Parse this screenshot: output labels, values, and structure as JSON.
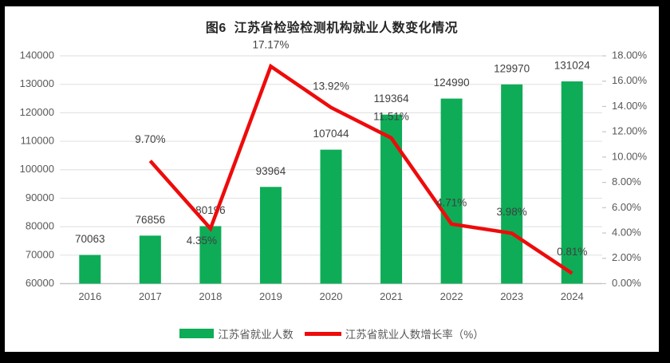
{
  "title": "图6  江苏省检验检测机构就业人数变化情况",
  "colors": {
    "bar": "#0eac57",
    "line": "#ee0b0b",
    "grid": "#e4e4e4",
    "axis_line": "#c6c6c6",
    "axis_text": "#595959",
    "data_label_text": "#404040",
    "background": "#ffffff",
    "frame": "#000000"
  },
  "chart_data": {
    "type": "bar+line combo",
    "title": "图6  江苏省检验检测机构就业人数变化情况",
    "categories": [
      "2016",
      "2017",
      "2018",
      "2019",
      "2020",
      "2021",
      "2022",
      "2023",
      "2024"
    ],
    "series": [
      {
        "name": "江苏省就业人数",
        "type": "bar",
        "axis": "left",
        "values": [
          70063,
          76856,
          80196,
          93964,
          107044,
          119364,
          124990,
          129970,
          131024
        ],
        "labels": [
          "70063",
          "76856",
          "80196",
          "93964",
          "107044",
          "119364",
          "124990",
          "129970",
          "131024"
        ]
      },
      {
        "name": "江苏省就业人数增长率（%）",
        "type": "line",
        "axis": "right",
        "values": [
          null,
          9.7,
          4.35,
          17.17,
          13.92,
          11.51,
          4.71,
          3.98,
          0.81
        ],
        "labels": [
          "",
          "9.70%",
          "4.35%",
          "17.17%",
          "13.92%",
          "11.51%",
          "4.71%",
          "3.98%",
          "0.81%"
        ]
      }
    ],
    "left_axis": {
      "min": 60000,
      "max": 140000,
      "step": 10000,
      "ticks": [
        "140000",
        "130000",
        "120000",
        "110000",
        "100000",
        "90000",
        "80000",
        "70000",
        "60000"
      ]
    },
    "right_axis": {
      "min": 0,
      "max": 18,
      "step": 2,
      "ticks": [
        "18.00%",
        "16.00%",
        "14.00%",
        "12.00%",
        "10.00%",
        "8.00%",
        "6.00%",
        "4.00%",
        "2.00%",
        "0.00%"
      ]
    },
    "grid": "horizontal only",
    "legend_position": "bottom",
    "legend": [
      {
        "label": "江苏省就业人数",
        "marker": "bar"
      },
      {
        "label": "江苏省就业人数增长率（%）",
        "marker": "line"
      }
    ]
  }
}
